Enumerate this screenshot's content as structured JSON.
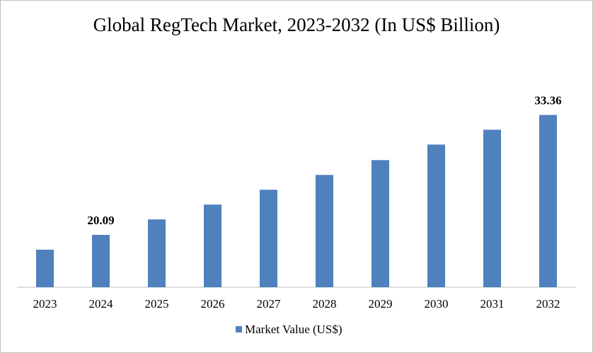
{
  "chart_data": {
    "type": "bar",
    "title": "Global RegTech Market, 2023-2032 (In US$ Billion)",
    "categories": [
      "2023",
      "2024",
      "2025",
      "2026",
      "2027",
      "2028",
      "2029",
      "2030",
      "2031",
      "2032"
    ],
    "series": [
      {
        "name": "Market Value (US$)",
        "color": "#4f81bd",
        "values": [
          18.45,
          20.09,
          21.8,
          23.44,
          25.08,
          26.72,
          28.36,
          30.08,
          31.72,
          33.36
        ],
        "value_labels": [
          null,
          "20.09",
          null,
          null,
          null,
          null,
          null,
          null,
          null,
          "33.36"
        ]
      }
    ],
    "ylim": [
      14.3,
      35.9
    ],
    "legend": "bottom"
  }
}
